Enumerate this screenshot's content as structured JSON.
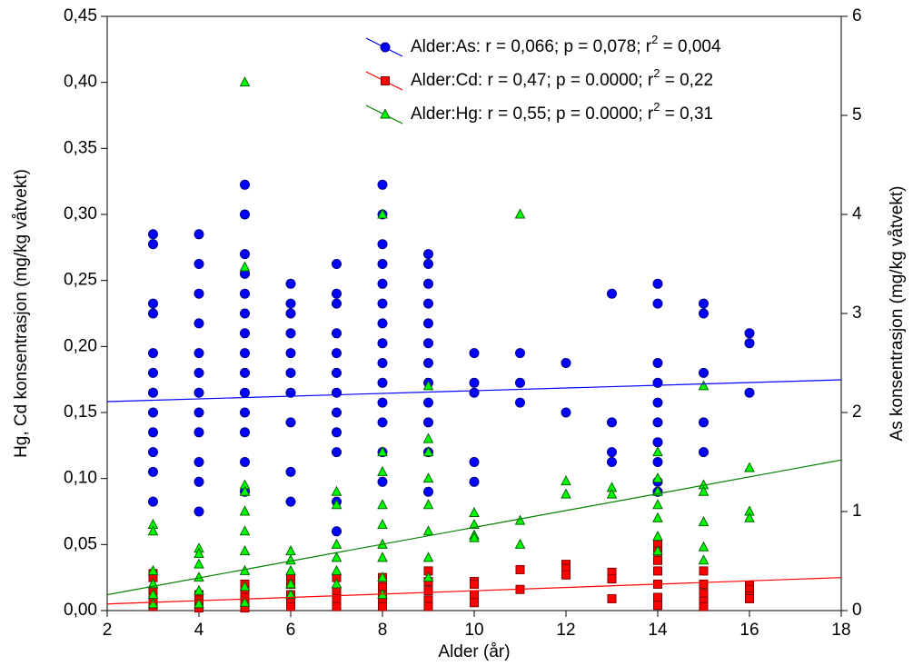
{
  "chart_data": {
    "type": "scatter",
    "xlabel": "Alder (år)",
    "ylabel": "Hg, Cd konsentrasjon (mg/kg våtvekt)",
    "y2label": "As konsentrasjon (mg/kg våtvekt)",
    "xlim": [
      2,
      18
    ],
    "xticks": [
      2,
      4,
      6,
      8,
      10,
      12,
      14,
      16,
      18
    ],
    "ylim": [
      0,
      0.45
    ],
    "yticks": [
      {
        "value": 0,
        "label": "0,00"
      },
      {
        "value": 0.05,
        "label": "0,05"
      },
      {
        "value": 0.1,
        "label": "0,10"
      },
      {
        "value": 0.15,
        "label": "0,15"
      },
      {
        "value": 0.2,
        "label": "0,20"
      },
      {
        "value": 0.25,
        "label": "0,25"
      },
      {
        "value": 0.3,
        "label": "0,30"
      },
      {
        "value": 0.35,
        "label": "0,35"
      },
      {
        "value": 0.4,
        "label": "0,40"
      },
      {
        "value": 0.45,
        "label": "0,45"
      }
    ],
    "y2lim": [
      0,
      6
    ],
    "y2ticks": [
      0,
      1,
      2,
      3,
      4,
      5,
      6
    ],
    "legend": "upper right",
    "series": [
      {
        "name_parts": [
          "Alder:As: r = 0,066; p = 0,078; r",
          "2",
          " = 0,004"
        ],
        "axis": "y2",
        "marker": "circle",
        "color": "#0000ff",
        "edge": "#000080",
        "line_color": "#0000ff",
        "x": [
          3,
          3,
          3,
          3,
          3,
          3,
          3,
          3,
          3,
          3,
          3,
          3,
          4,
          4,
          4,
          4,
          4,
          4,
          4,
          4,
          4,
          4,
          4,
          4,
          5,
          5,
          5,
          5,
          5,
          5,
          5,
          5,
          5,
          5,
          5,
          5,
          5,
          5,
          6,
          6,
          6,
          6,
          6,
          6,
          6,
          6,
          6,
          6,
          7,
          7,
          7,
          7,
          7,
          7,
          7,
          7,
          7,
          7,
          7,
          7,
          8,
          8,
          8,
          8,
          8,
          8,
          8,
          8,
          8,
          8,
          8,
          8,
          8,
          8,
          9,
          9,
          9,
          9,
          9,
          9,
          9,
          9,
          9,
          9,
          9,
          9,
          10,
          10,
          10,
          10,
          10,
          11,
          11,
          11,
          12,
          12,
          13,
          13,
          13,
          13,
          14,
          14,
          14,
          14,
          14,
          14,
          14,
          14,
          14,
          14,
          15,
          15,
          15,
          15,
          15,
          16,
          16,
          16
        ],
        "values": [
          3.8,
          3.7,
          3.1,
          3.0,
          2.6,
          2.4,
          2.2,
          2.0,
          1.8,
          1.6,
          1.4,
          1.1,
          3.8,
          3.5,
          3.2,
          2.9,
          2.6,
          2.4,
          2.2,
          2.0,
          1.8,
          1.5,
          1.3,
          1.0,
          4.3,
          4.0,
          3.6,
          3.4,
          3.2,
          3.0,
          2.8,
          2.6,
          2.4,
          2.2,
          2.0,
          1.8,
          1.5,
          1.2,
          3.3,
          3.1,
          3.0,
          2.8,
          2.6,
          2.4,
          2.2,
          1.9,
          1.4,
          1.1,
          3.5,
          3.2,
          3.1,
          2.8,
          2.6,
          2.4,
          2.2,
          2.0,
          1.8,
          1.6,
          1.1,
          0.8,
          4.3,
          4.0,
          3.7,
          3.5,
          3.3,
          3.1,
          2.9,
          2.7,
          2.5,
          2.3,
          2.1,
          1.9,
          1.6,
          1.3,
          3.6,
          3.5,
          3.3,
          3.1,
          2.9,
          2.7,
          2.5,
          2.3,
          2.1,
          1.9,
          1.6,
          1.2,
          2.6,
          2.3,
          2.2,
          1.5,
          1.3,
          2.6,
          2.3,
          2.1,
          2.5,
          2.0,
          3.2,
          1.9,
          1.6,
          1.5,
          3.3,
          3.1,
          2.5,
          2.3,
          2.1,
          1.9,
          1.7,
          1.5,
          1.3,
          1.2,
          3.1,
          3.0,
          2.4,
          1.9,
          1.6,
          2.8,
          2.7,
          2.2
        ],
        "fit": {
          "x": [
            2,
            18
          ],
          "values": [
            2.11,
            2.33
          ]
        }
      },
      {
        "name_parts": [
          "Alder:Cd: r = 0,47; p = 0.0000; r",
          "2",
          " = 0,22"
        ],
        "axis": "y",
        "marker": "square",
        "color": "#ff0000",
        "edge": "#800000",
        "line_color": "#ff0000",
        "x": [
          3,
          3,
          3,
          3,
          3,
          4,
          4,
          4,
          4,
          5,
          5,
          5,
          5,
          5,
          6,
          6,
          6,
          6,
          6,
          7,
          7,
          7,
          7,
          8,
          8,
          8,
          8,
          8,
          9,
          9,
          9,
          9,
          9,
          10,
          10,
          10,
          10,
          11,
          11,
          12,
          12,
          12,
          13,
          13,
          13,
          14,
          14,
          14,
          14,
          14,
          14,
          14,
          15,
          15,
          15,
          15,
          15,
          16,
          16,
          16,
          16
        ],
        "values": [
          0.028,
          0.025,
          0.015,
          0.008,
          0.003,
          0.012,
          0.008,
          0.005,
          0.002,
          0.02,
          0.015,
          0.01,
          0.005,
          0.002,
          0.025,
          0.02,
          0.012,
          0.006,
          0.003,
          0.025,
          0.015,
          0.008,
          0.003,
          0.025,
          0.018,
          0.012,
          0.006,
          0.003,
          0.03,
          0.022,
          0.015,
          0.008,
          0.003,
          0.022,
          0.02,
          0.012,
          0.006,
          0.031,
          0.016,
          0.035,
          0.032,
          0.027,
          0.029,
          0.024,
          0.009,
          0.05,
          0.045,
          0.038,
          0.03,
          0.02,
          0.01,
          0.004,
          0.03,
          0.02,
          0.013,
          0.007,
          0.003,
          0.019,
          0.016,
          0.011,
          0.009
        ],
        "fit": {
          "x": [
            2,
            18
          ],
          "values": [
            0.005,
            0.025
          ]
        }
      },
      {
        "name_parts": [
          "Alder:Hg: r = 0,55; p = 0.0000; r",
          "2",
          " = 0,31"
        ],
        "axis": "y",
        "marker": "triangle",
        "color": "#00ff00",
        "edge": "#006400",
        "line_color": "#008000",
        "x": [
          3,
          3,
          3,
          3,
          3,
          3,
          4,
          4,
          4,
          4,
          4,
          4,
          5,
          5,
          5,
          5,
          5,
          5,
          5,
          5,
          5,
          5,
          6,
          6,
          6,
          6,
          6,
          7,
          7,
          7,
          7,
          7,
          7,
          8,
          8,
          8,
          8,
          8,
          8,
          8,
          8,
          8,
          9,
          9,
          9,
          9,
          9,
          9,
          9,
          9,
          10,
          10,
          10,
          10,
          11,
          11,
          11,
          12,
          12,
          13,
          13,
          14,
          14,
          14,
          14,
          14,
          14,
          14,
          15,
          15,
          15,
          15,
          15,
          15,
          16,
          16,
          16
        ],
        "values": [
          0.065,
          0.06,
          0.03,
          0.02,
          0.012,
          0.005,
          0.047,
          0.043,
          0.035,
          0.025,
          0.015,
          0.005,
          0.4,
          0.26,
          0.095,
          0.09,
          0.075,
          0.06,
          0.045,
          0.03,
          0.018,
          0.006,
          0.045,
          0.038,
          0.03,
          0.02,
          0.012,
          0.09,
          0.08,
          0.05,
          0.04,
          0.03,
          0.02,
          0.3,
          0.12,
          0.105,
          0.08,
          0.065,
          0.05,
          0.04,
          0.025,
          0.012,
          0.17,
          0.13,
          0.12,
          0.1,
          0.08,
          0.06,
          0.04,
          0.025,
          0.074,
          0.065,
          0.057,
          0.055,
          0.3,
          0.068,
          0.05,
          0.098,
          0.088,
          0.093,
          0.088,
          0.12,
          0.1,
          0.09,
          0.08,
          0.07,
          0.056,
          0.045,
          0.17,
          0.095,
          0.09,
          0.067,
          0.048,
          0.038,
          0.108,
          0.075,
          0.07
        ],
        "fit": {
          "x": [
            2,
            18
          ],
          "values": [
            0.012,
            0.114
          ]
        }
      }
    ]
  }
}
